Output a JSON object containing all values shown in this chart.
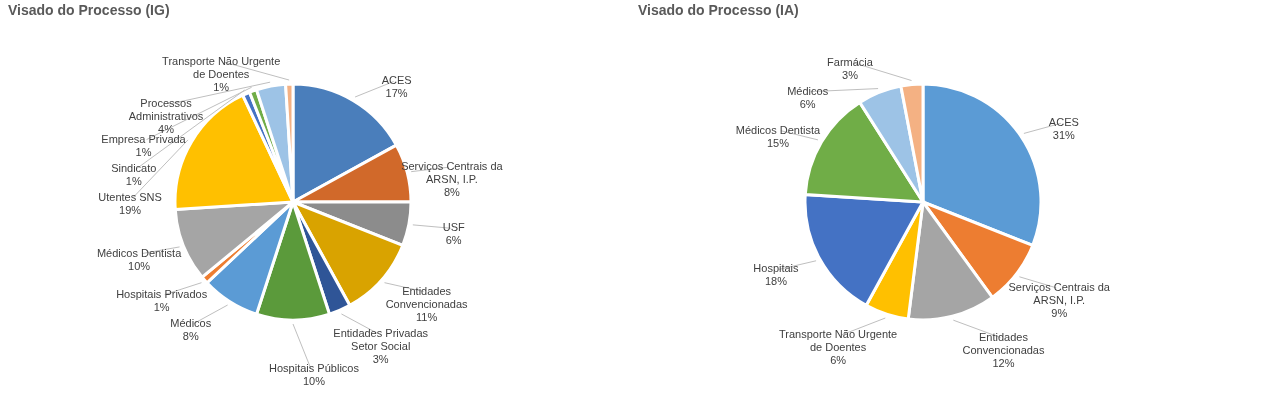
{
  "chart_data": [
    {
      "type": "pie",
      "title": "Visado do Processo (IG)",
      "categories": [
        "ACES",
        "Serviços Centrais da ARSN, I.P.",
        "USF",
        "Entidades Convencionadas",
        "Entidades Privadas Setor Social",
        "Hospitais Públicos",
        "Médicos",
        "Hospitais Privados",
        "Médicos Dentista",
        "Utentes SNS",
        "Sindicato",
        "Empresa Privada",
        "Processos Administrativos",
        "Transporte Não Urgente de Doentes"
      ],
      "values": [
        17,
        8,
        6,
        11,
        3,
        10,
        8,
        1,
        10,
        19,
        1,
        1,
        4,
        1
      ],
      "value_labels": [
        "17%",
        "8%",
        "6%",
        "11%",
        "3%",
        "10%",
        "8%",
        "1%",
        "10%",
        "19%",
        "1%",
        "1%",
        "4%",
        "1%"
      ],
      "colors": [
        "#4a7ebb",
        "#d1692a",
        "#8c8c8c",
        "#d9a300",
        "#2f5597",
        "#5b9a3b",
        "#5b9bd5",
        "#ed7d31",
        "#a5a5a5",
        "#ffc000",
        "#4472c4",
        "#70ad47",
        "#9dc3e6",
        "#f4b183"
      ]
    },
    {
      "type": "pie",
      "title": "Visado do Processo (IA)",
      "categories": [
        "ACES",
        "Serviços Centrais da ARSN, I.P.",
        "Entidades Convencionadas",
        "Transporte Não Urgente de Doentes",
        "Hospitais",
        "Médicos Dentista",
        "Médicos",
        "Farmácia"
      ],
      "values": [
        31,
        9,
        12,
        6,
        18,
        15,
        6,
        3
      ],
      "value_labels": [
        "31%",
        "9%",
        "12%",
        "6%",
        "18%",
        "15%",
        "6%",
        "3%"
      ],
      "colors": [
        "#5b9bd5",
        "#ed7d31",
        "#a5a5a5",
        "#ffc000",
        "#4472c4",
        "#70ad47",
        "#9dc3e6",
        "#f4b183"
      ]
    }
  ]
}
